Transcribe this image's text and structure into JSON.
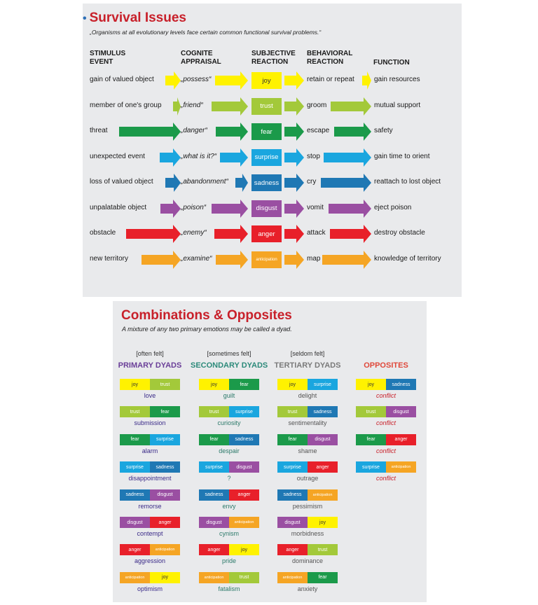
{
  "colors": {
    "joy": "#fff200",
    "trust": "#a3c93a",
    "fear": "#1b9a4a",
    "surprise": "#1aa6df",
    "sadness": "#1f78b4",
    "disgust": "#9a4fa2",
    "anger": "#e8202a",
    "anticipation": "#f5a524",
    "title_red": "#c8202a",
    "primary_purple": "#6a3e98",
    "secondary_teal": "#2c8a7a",
    "tertiary_gray": "#7a7a7a",
    "opposites_red": "#e0483a"
  },
  "survival": {
    "title": "Survival Issues",
    "subtitle": "„Organisms at all evolutionary levels face certain common functional survival problems.“",
    "headers": {
      "stimulus": "STIMULUS\nEVENT",
      "appraisal": "COGNITE\nAPPRAISAL",
      "subjective": "SUBJECTIVE\nREACTION",
      "behavioral": "BEHAVIORAL\nREACTION",
      "function": "FUNCTION"
    },
    "rows": [
      {
        "emotion": "joy",
        "stimulus": "gain of valued object",
        "appraisal": "„possess“",
        "reaction": "joy",
        "behavior": "retain or repeat",
        "function": "gain resources"
      },
      {
        "emotion": "trust",
        "stimulus": "member of one's group",
        "appraisal": "„friend“",
        "reaction": "trust",
        "behavior": "groom",
        "function": "mutual support"
      },
      {
        "emotion": "fear",
        "stimulus": "threat",
        "appraisal": "„danger“",
        "reaction": "fear",
        "behavior": "escape",
        "function": "safety"
      },
      {
        "emotion": "surprise",
        "stimulus": "unexpected event",
        "appraisal": "„what is it?“",
        "reaction": "surprise",
        "behavior": "stop",
        "function": "gain time to orient"
      },
      {
        "emotion": "sadness",
        "stimulus": "loss of valued object",
        "appraisal": "„abandonment“",
        "reaction": "sadness",
        "behavior": "cry",
        "function": "reattach to lost object"
      },
      {
        "emotion": "disgust",
        "stimulus": "unpalatable object",
        "appraisal": "„poison“",
        "reaction": "disgust",
        "behavior": "vomit",
        "function": "eject poison"
      },
      {
        "emotion": "anger",
        "stimulus": "obstacle",
        "appraisal": "„enemy“",
        "reaction": "anger",
        "behavior": "attack",
        "function": "destroy obstacle"
      },
      {
        "emotion": "anticipation",
        "stimulus": "new territory",
        "appraisal": "„examine“",
        "reaction": "anticipation",
        "behavior": "map",
        "function": "knowledge of territory"
      }
    ]
  },
  "combos": {
    "title": "Combinations & Opposites",
    "subtitle": "A mixture of any two primary emotions may be called a dyad.",
    "columns": [
      {
        "freq": "[often felt]",
        "name": "PRIMARY DYADS",
        "color": "#6a3e98",
        "label_color": "#3a2a88",
        "dyads": [
          {
            "a": "joy",
            "b": "trust",
            "label": "love"
          },
          {
            "a": "trust",
            "b": "fear",
            "label": "submission"
          },
          {
            "a": "fear",
            "b": "surprise",
            "label": "alarm"
          },
          {
            "a": "surprise",
            "b": "sadness",
            "label": "disappointment"
          },
          {
            "a": "sadness",
            "b": "disgust",
            "label": "remorse"
          },
          {
            "a": "disgust",
            "b": "anger",
            "label": "contempt"
          },
          {
            "a": "anger",
            "b": "anticipation",
            "label": "aggression"
          },
          {
            "a": "anticipation",
            "b": "joy",
            "label": "optimism"
          }
        ]
      },
      {
        "freq": "[sometimes felt]",
        "name": "SECONDARY DYADS",
        "color": "#2c8a7a",
        "label_color": "#2c7a6a",
        "dyads": [
          {
            "a": "joy",
            "b": "fear",
            "label": "guilt"
          },
          {
            "a": "trust",
            "b": "surprise",
            "label": "curiosity"
          },
          {
            "a": "fear",
            "b": "sadness",
            "label": "despair"
          },
          {
            "a": "surprise",
            "b": "disgust",
            "label": "?"
          },
          {
            "a": "sadness",
            "b": "anger",
            "label": "envy"
          },
          {
            "a": "disgust",
            "b": "anticipation",
            "label": "cynism"
          },
          {
            "a": "anger",
            "b": "joy",
            "label": "pride"
          },
          {
            "a": "anticipation",
            "b": "trust",
            "label": "fatalism"
          }
        ]
      },
      {
        "freq": "[seldom felt]",
        "name": "TERTIARY DYADS",
        "color": "#7a7a7a",
        "label_color": "#555555",
        "dyads": [
          {
            "a": "joy",
            "b": "surprise",
            "label": "delight"
          },
          {
            "a": "trust",
            "b": "sadness",
            "label": "sentimentality"
          },
          {
            "a": "fear",
            "b": "disgust",
            "label": "shame"
          },
          {
            "a": "surprise",
            "b": "anger",
            "label": "outrage"
          },
          {
            "a": "sadness",
            "b": "anticipation",
            "label": "pessimism"
          },
          {
            "a": "disgust",
            "b": "joy",
            "label": "morbidness"
          },
          {
            "a": "anger",
            "b": "trust",
            "label": "dominance"
          },
          {
            "a": "anticipation",
            "b": "fear",
            "label": "anxiety"
          }
        ]
      },
      {
        "freq": "",
        "name": "OPPOSITES",
        "color": "#e0483a",
        "label_color": "#c8202a",
        "dyads": [
          {
            "a": "joy",
            "b": "sadness",
            "label": "conflict"
          },
          {
            "a": "trust",
            "b": "disgust",
            "label": "conflict"
          },
          {
            "a": "fear",
            "b": "anger",
            "label": "conflict"
          },
          {
            "a": "surprise",
            "b": "anticipation",
            "label": "conflict"
          }
        ]
      }
    ]
  }
}
